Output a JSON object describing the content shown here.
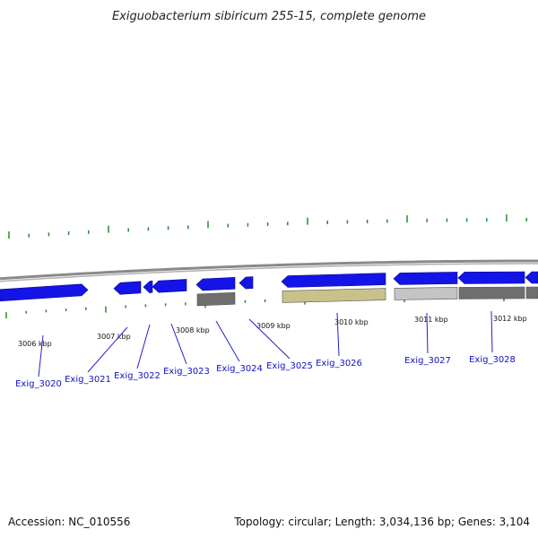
{
  "title": "Exiguobacterium sibiricum 255-15, complete genome",
  "footer": {
    "accession": "Accession: NC_010556",
    "summary": "Topology: circular; Length: 3,034,136 bp; Genes: 3,104"
  },
  "colors": {
    "backbone": "#8a8a8a",
    "tick": "#2a8a2a",
    "gene_forward": "#1414e6",
    "gene_label": "#1010c0",
    "feature_khaki": "#c8c28a",
    "feature_gray": "#6e6e6e",
    "feature_lightgray": "#c4c4c4"
  },
  "kbp_labels": [
    "3006 kbp",
    "3007 kbp",
    "3008 kbp",
    "3009 kbp",
    "3010 kbp",
    "3011 kbp",
    "3012 kbp"
  ],
  "genes": [
    {
      "name": "Exig_3020",
      "direction": "forward"
    },
    {
      "name": "Exig_3021",
      "direction": "reverse"
    },
    {
      "name": "Exig_3022",
      "direction": "reverse"
    },
    {
      "name": "Exig_3023",
      "direction": "reverse"
    },
    {
      "name": "Exig_3024",
      "direction": "reverse"
    },
    {
      "name": "Exig_3025",
      "direction": "reverse"
    },
    {
      "name": "Exig_3026",
      "direction": "reverse"
    },
    {
      "name": "Exig_3027",
      "direction": "reverse"
    },
    {
      "name": "Exig_3028",
      "direction": "reverse"
    }
  ]
}
